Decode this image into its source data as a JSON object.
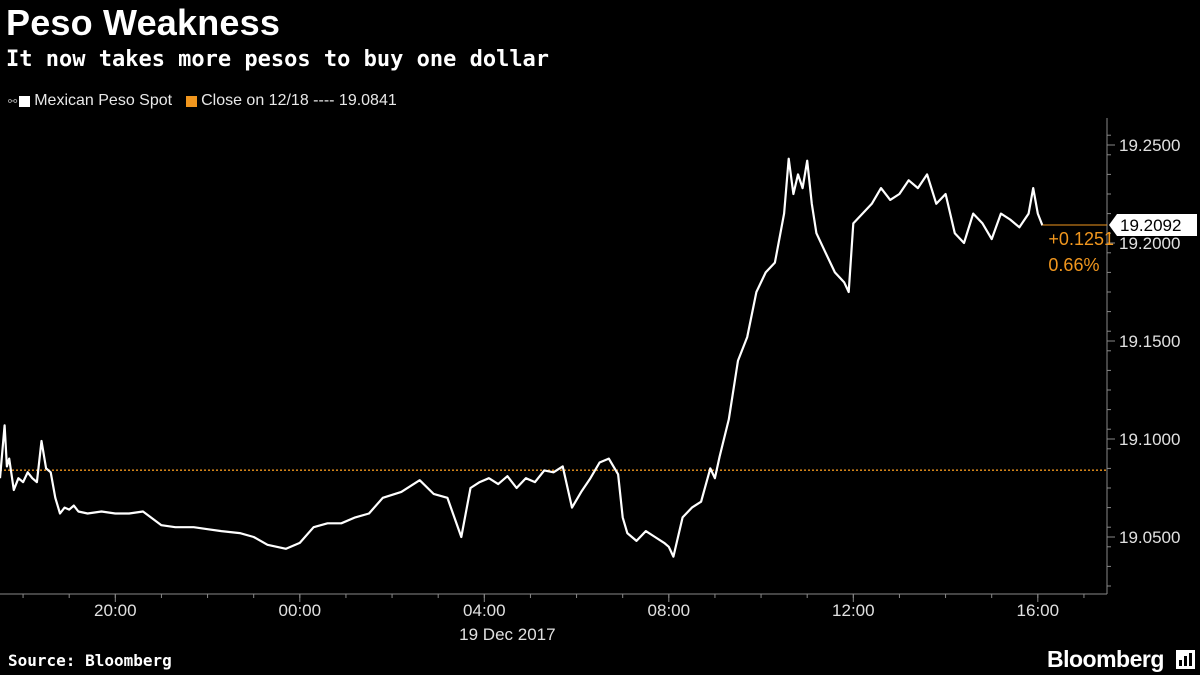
{
  "header": {
    "title": "Peso Weakness",
    "subtitle": "It now takes more pesos to buy one dollar"
  },
  "legend": {
    "series_label": "Mexican Peso Spot",
    "close_label": "Close on 12/18 ---- 19.0841"
  },
  "colors": {
    "background": "#000000",
    "series": "#ffffff",
    "close": "#f0961e",
    "axis": "#888888"
  },
  "footer": {
    "source": "Source: Bloomberg",
    "brand": "Bloomberg",
    "brand_icon": "bloomberg-chart-icon"
  },
  "chart_data": {
    "type": "line",
    "x_unit": "hours after 19:00 on 18 Dec 2017",
    "x_range": [
      -1.5,
      22.5
    ],
    "ylim": [
      19.02,
      19.26
    ],
    "y_ticks": [
      "19.2500",
      "19.2000",
      "19.1500",
      "19.1000",
      "19.0500"
    ],
    "x_ticks": [
      {
        "x": 1,
        "label": "20:00"
      },
      {
        "x": 5,
        "label": "00:00"
      },
      {
        "x": 9,
        "label": "04:00"
      },
      {
        "x": 13,
        "label": "08:00"
      },
      {
        "x": 17,
        "label": "12:00"
      },
      {
        "x": 21,
        "label": "16:00"
      }
    ],
    "date_label": "19 Dec 2017",
    "grid": false,
    "reference_line": {
      "name": "Close on 12/18",
      "value": 19.0841
    },
    "last_value": {
      "label": "19.2092",
      "value": 19.2092
    },
    "change": {
      "abs": "+0.1251",
      "pct": "0.66%"
    },
    "series": [
      {
        "name": "Mexican Peso Spot",
        "x": [
          -1.5,
          -1.4,
          -1.35,
          -1.3,
          -1.2,
          -1.1,
          -1.0,
          -0.9,
          -0.8,
          -0.7,
          -0.6,
          -0.5,
          -0.4,
          -0.3,
          -0.2,
          -0.1,
          0.0,
          0.1,
          0.2,
          0.4,
          0.7,
          1.0,
          1.3,
          1.6,
          2.0,
          2.3,
          2.7,
          3.0,
          3.3,
          3.7,
          4.0,
          4.3,
          4.7,
          5.0,
          5.3,
          5.6,
          5.9,
          6.2,
          6.5,
          6.8,
          7.2,
          7.6,
          7.9,
          8.2,
          8.5,
          8.7,
          8.9,
          9.1,
          9.3,
          9.5,
          9.7,
          9.9,
          10.1,
          10.3,
          10.5,
          10.7,
          10.9,
          11.1,
          11.3,
          11.5,
          11.7,
          11.9,
          12.0,
          12.1,
          12.3,
          12.5,
          12.7,
          12.9,
          13.0,
          13.1,
          13.2,
          13.3,
          13.5,
          13.7,
          13.9,
          14.0,
          14.1,
          14.3,
          14.5,
          14.7,
          14.9,
          15.1,
          15.3,
          15.5,
          15.6,
          15.7,
          15.8,
          15.9,
          16.0,
          16.1,
          16.2,
          16.4,
          16.6,
          16.8,
          16.9,
          17.0,
          17.2,
          17.4,
          17.6,
          17.8,
          18.0,
          18.2,
          18.4,
          18.6,
          18.8,
          19.0,
          19.2,
          19.4,
          19.6,
          19.8,
          20.0,
          20.2,
          20.4,
          20.6,
          20.8,
          20.9,
          21.0,
          21.1
        ],
        "y": [
          19.08,
          19.107,
          19.086,
          19.09,
          19.074,
          19.08,
          19.078,
          19.083,
          19.08,
          19.078,
          19.099,
          19.085,
          19.083,
          19.07,
          19.062,
          19.065,
          19.064,
          19.066,
          19.063,
          19.062,
          19.063,
          19.062,
          19.062,
          19.063,
          19.056,
          19.055,
          19.055,
          19.054,
          19.053,
          19.052,
          19.05,
          19.046,
          19.044,
          19.047,
          19.055,
          19.057,
          19.057,
          19.06,
          19.062,
          19.07,
          19.073,
          19.079,
          19.072,
          19.07,
          19.05,
          19.075,
          19.078,
          19.08,
          19.077,
          19.081,
          19.075,
          19.08,
          19.078,
          19.084,
          19.083,
          19.086,
          19.065,
          19.073,
          19.08,
          19.088,
          19.09,
          19.082,
          19.06,
          19.052,
          19.048,
          19.053,
          19.05,
          19.047,
          19.045,
          19.04,
          19.05,
          19.06,
          19.065,
          19.068,
          19.085,
          19.08,
          19.091,
          19.11,
          19.14,
          19.152,
          19.175,
          19.185,
          19.19,
          19.215,
          19.243,
          19.225,
          19.235,
          19.228,
          19.242,
          19.22,
          19.205,
          19.195,
          19.185,
          19.18,
          19.175,
          19.21,
          19.215,
          19.22,
          19.228,
          19.222,
          19.225,
          19.232,
          19.228,
          19.235,
          19.22,
          19.225,
          19.205,
          19.2,
          19.215,
          19.21,
          19.202,
          19.215,
          19.212,
          19.208,
          19.215,
          19.228,
          19.215,
          19.209
        ]
      }
    ]
  }
}
